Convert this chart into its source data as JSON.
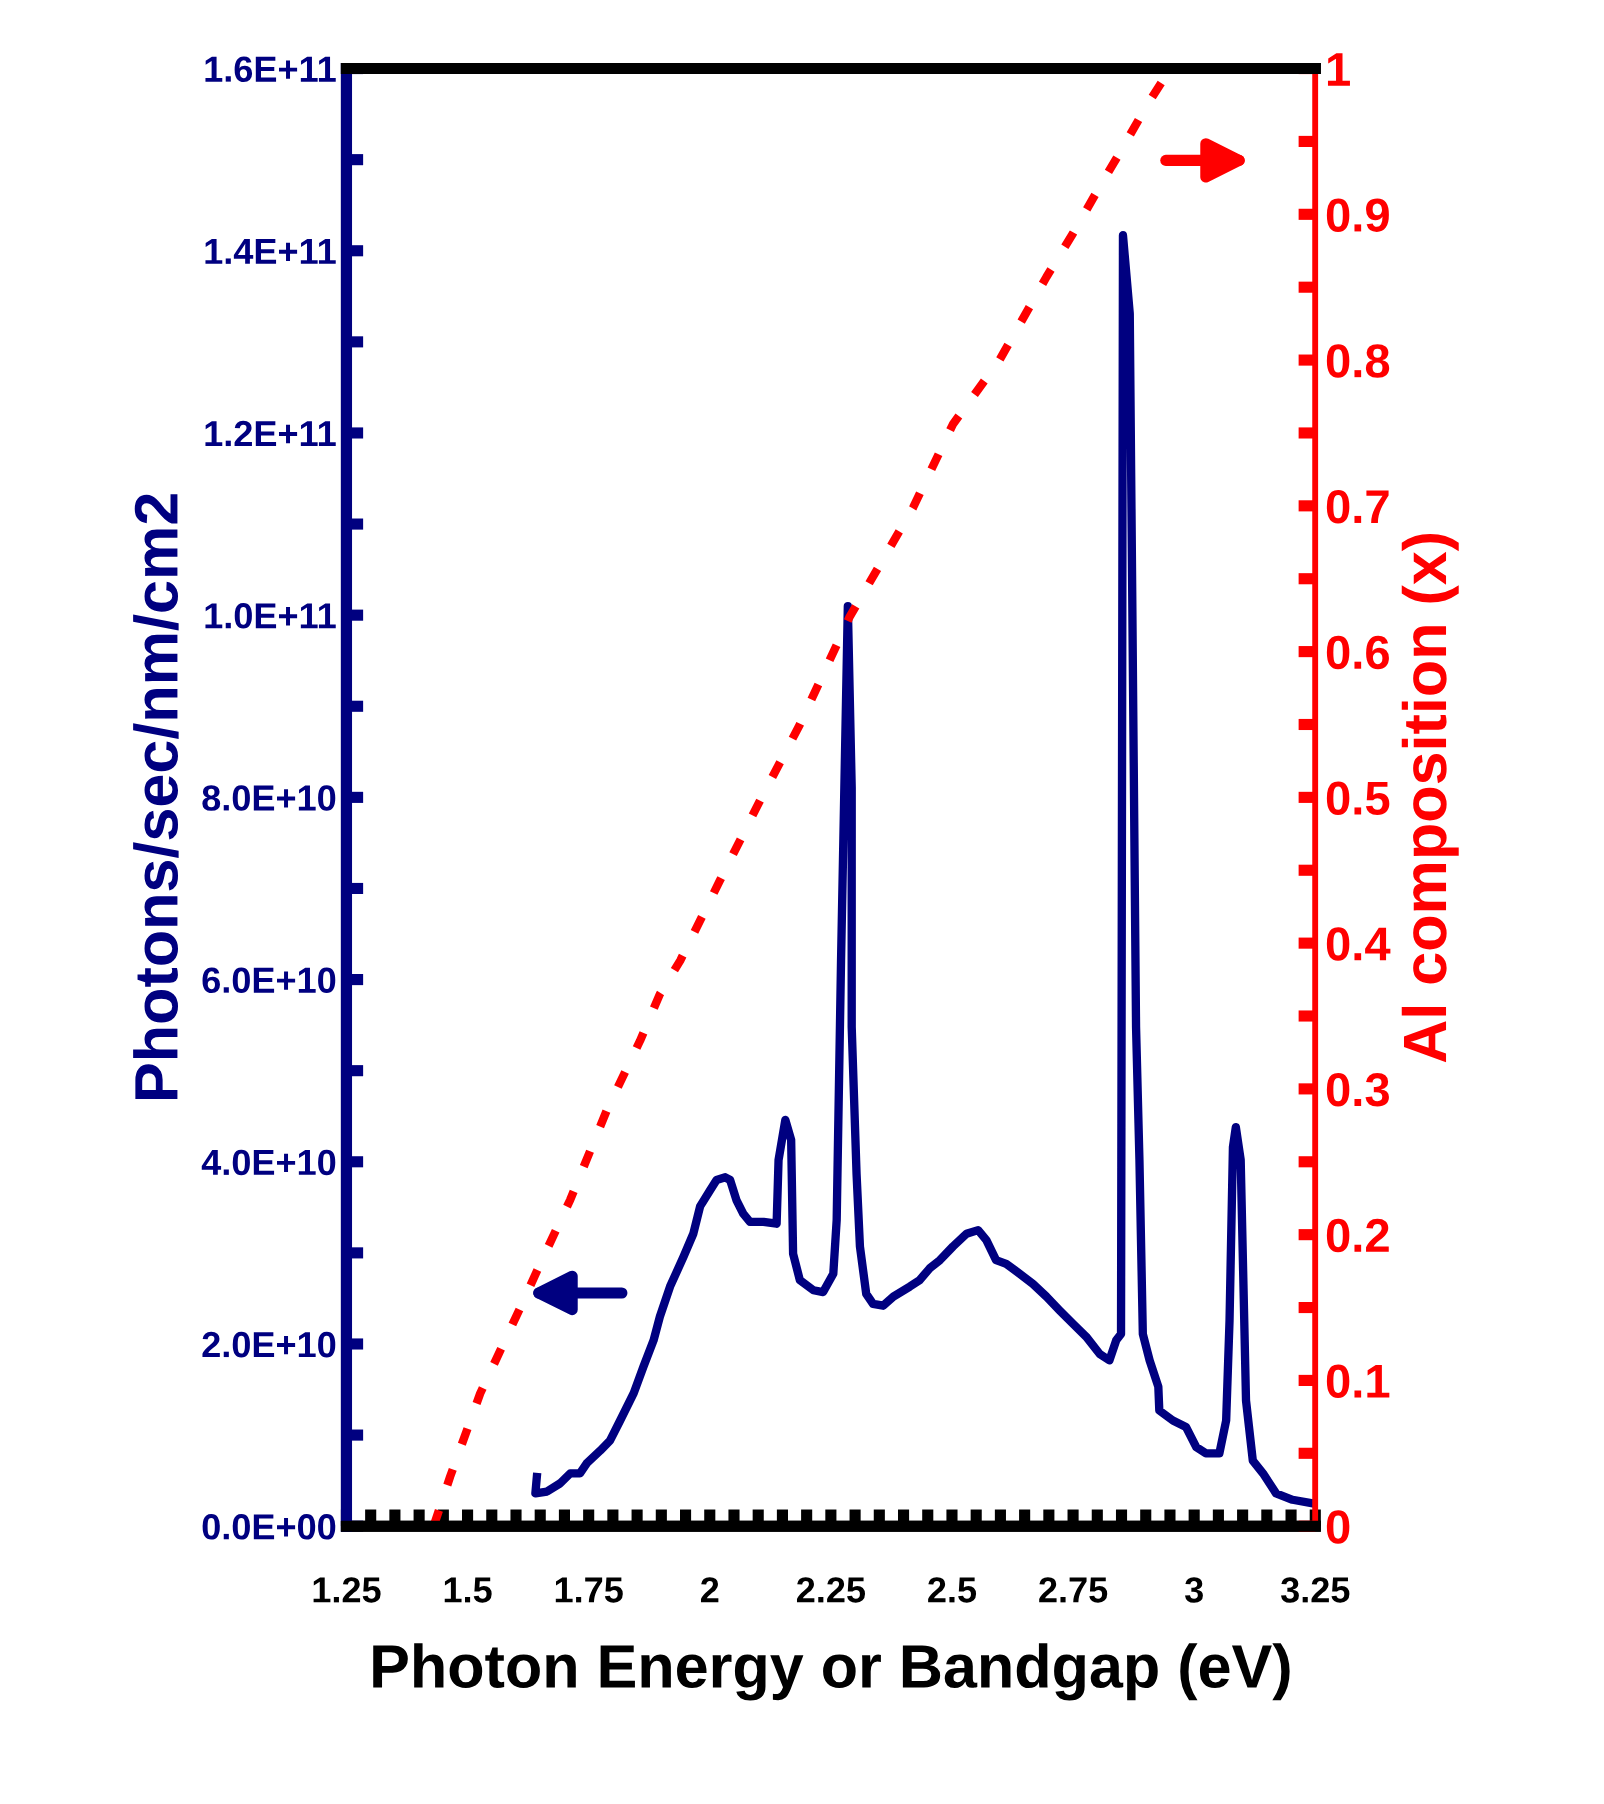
{
  "chart_data": {
    "type": "line",
    "xlabel": "Photon Energy or Bandgap (eV)",
    "ylabel": "Photons/sec/nm/cm2",
    "y2label": "Al composition (x)",
    "xlim": [
      1.25,
      3.25
    ],
    "xticks": [
      1.25,
      {
        "value": 1.3,
        "label": null
      },
      {
        "value": 1.35,
        "label": null
      },
      {
        "value": 1.4,
        "label": null
      },
      {
        "value": 1.45,
        "label": null
      },
      1.5,
      {
        "value": 1.55,
        "label": null
      },
      {
        "value": 1.6,
        "label": null
      },
      {
        "value": 1.65,
        "label": null
      },
      {
        "value": 1.7,
        "label": null
      },
      1.75,
      {
        "value": 1.8,
        "label": null
      },
      {
        "value": 1.85,
        "label": null
      },
      {
        "value": 1.9,
        "label": null
      },
      {
        "value": 1.95,
        "label": null
      },
      2,
      {
        "value": 2.05,
        "label": null
      },
      {
        "value": 2.1,
        "label": null
      },
      {
        "value": 2.15,
        "label": null
      },
      {
        "value": 2.2,
        "label": null
      },
      2.25,
      {
        "value": 2.3,
        "label": null
      },
      {
        "value": 2.35,
        "label": null
      },
      {
        "value": 2.4,
        "label": null
      },
      {
        "value": 2.45,
        "label": null
      },
      2.5,
      {
        "value": 2.55,
        "label": null
      },
      {
        "value": 2.6,
        "label": null
      },
      {
        "value": 2.65,
        "label": null
      },
      {
        "value": 2.7,
        "label": null
      },
      2.75,
      {
        "value": 2.8,
        "label": null
      },
      {
        "value": 2.85,
        "label": null
      },
      {
        "value": 2.9,
        "label": null
      },
      {
        "value": 2.95,
        "label": null
      },
      3,
      {
        "value": 3.05,
        "label": null
      },
      {
        "value": 3.1,
        "label": null
      },
      {
        "value": 3.15,
        "label": null
      },
      {
        "value": 3.2,
        "label": null
      },
      3.25
    ],
    "ylim": [
      0,
      160000000000.0
    ],
    "yticks": [
      {
        "value": 0,
        "label": "0.0E+00"
      },
      {
        "value": 10000000000.0,
        "label": null
      },
      {
        "value": 20000000000.0,
        "label": "2.0E+10"
      },
      {
        "value": 30000000000.0,
        "label": null
      },
      {
        "value": 40000000000.0,
        "label": "4.0E+10"
      },
      {
        "value": 50000000000.0,
        "label": null
      },
      {
        "value": 60000000000.0,
        "label": "6.0E+10"
      },
      {
        "value": 70000000000.0,
        "label": null
      },
      {
        "value": 80000000000.0,
        "label": "8.0E+10"
      },
      {
        "value": 90000000000.0,
        "label": null
      },
      {
        "value": 100000000000.0,
        "label": "1.0E+11"
      },
      {
        "value": 110000000000.0,
        "label": null
      },
      {
        "value": 120000000000.0,
        "label": "1.2E+11"
      },
      {
        "value": 130000000000.0,
        "label": null
      },
      {
        "value": 140000000000.0,
        "label": "1.4E+11"
      },
      {
        "value": 150000000000.0,
        "label": null
      },
      {
        "value": 160000000000.0,
        "label": "1.6E+11"
      }
    ],
    "y2lim": [
      0,
      1
    ],
    "y2ticks": [
      0,
      {
        "value": 0.05,
        "label": null
      },
      0.1,
      {
        "value": 0.15,
        "label": null
      },
      0.2,
      {
        "value": 0.25,
        "label": null
      },
      0.3,
      {
        "value": 0.35,
        "label": null
      },
      0.4,
      {
        "value": 0.45,
        "label": null
      },
      0.5,
      {
        "value": 0.55,
        "label": null
      },
      0.6,
      {
        "value": 0.65,
        "label": null
      },
      0.7,
      {
        "value": 0.75,
        "label": null
      },
      0.8,
      {
        "value": 0.85,
        "label": null
      },
      0.9,
      {
        "value": 0.95,
        "label": null
      },
      1
    ],
    "grid": false,
    "legend": false,
    "marker": "none",
    "series": [
      {
        "color": "#000080",
        "line_style": "solid",
        "x": [
          1.643,
          1.64,
          1.664,
          1.691,
          1.712,
          1.732,
          1.746,
          1.774,
          1.794,
          1.815,
          1.843,
          1.863,
          1.884,
          1.897,
          1.918,
          1.946,
          1.966,
          1.98,
          2.001,
          2.014,
          2.032,
          2.042,
          2.055,
          2.069,
          2.083,
          2.111,
          2.138,
          2.142,
          2.156,
          2.168,
          2.172,
          2.186,
          2.214,
          2.234,
          2.255,
          2.262,
          2.271,
          2.285,
          2.293,
          2.293,
          2.303,
          2.31,
          2.323,
          2.337,
          2.358,
          2.379,
          2.413,
          2.433,
          2.454,
          2.475,
          2.502,
          2.53,
          2.554,
          2.571,
          2.591,
          2.612,
          2.64,
          2.667,
          2.695,
          2.722,
          2.75,
          2.777,
          2.805,
          2.825,
          2.839,
          2.849,
          2.853,
          2.867,
          2.88,
          2.887,
          2.894,
          2.908,
          2.926,
          2.928,
          2.956,
          2.983,
          3.004,
          3.024,
          3.052,
          3.066,
          3.073,
          3.08,
          3.086,
          3.096,
          3.107,
          3.121,
          3.142,
          3.169,
          3.203,
          3.245
        ],
        "values": [
          5400000000.0,
          3600000000.0,
          3800000000.0,
          4700000000.0,
          5800000000.0,
          5800000000.0,
          6900000000.0,
          8300000000.0,
          9400000000.0,
          11600000000.0,
          14600000000.0,
          17500000000.0,
          20400000000.0,
          23000000000.0,
          26300000000.0,
          29600000000.0,
          32100000000.0,
          35100000000.0,
          36900000000.0,
          38000000000.0,
          38300000000.0,
          38000000000.0,
          35800000000.0,
          34300000000.0,
          33400000000.0,
          33400000000.0,
          33200000000.0,
          40200000000.0,
          44600000000.0,
          42400000000.0,
          29900000000.0,
          27000000000.0,
          25900000000.0,
          25700000000.0,
          27700000000.0,
          33600000000.0,
          62100000000.0,
          101000000000.0,
          81100000000.0,
          54800000000.0,
          38700000000.0,
          30700000000.0,
          25500000000.0,
          24400000000.0,
          24200000000.0,
          25200000000.0,
          26300000000.0,
          27000000000.0,
          28300000000.0,
          29200000000.0,
          30700000000.0,
          32100000000.0,
          32500000000.0,
          31400000000.0,
          29200000000.0,
          28800000000.0,
          27700000000.0,
          26600000000.0,
          25200000000.0,
          23700000000.0,
          22200000000.0,
          20800000000.0,
          18900000000.0,
          18200000000.0,
          20400000000.0,
          21100000000.0,
          141700000000.0,
          133100000000.0,
          54800000000.0,
          40200000000.0,
          21100000000.0,
          18200000000.0,
          15300000000.0,
          12700000000.0,
          11600000000.0,
          10900000000.0,
          8700000000.0,
          8000000000.0,
          8000000000.0,
          11600000000.0,
          22600000000.0,
          41600000000.0,
          43800000000.0,
          40200000000.0,
          13800000000.0,
          7200000000.0,
          5800000000.0,
          3600000000.0,
          2900000000.0,
          2500000000.0
        ]
      },
      {
        "color": "#ff0000",
        "line_style": "dotted",
        "axis": "y2",
        "x": [
          1.43,
          1.464,
          1.526,
          1.609,
          1.65,
          1.712,
          1.787,
          1.856,
          1.897,
          1.939,
          2.021,
          2.104,
          2.186,
          2.289,
          2.42,
          2.502,
          2.598,
          2.695,
          2.75,
          2.805,
          2.853,
          2.901,
          2.949
        ],
        "values": [
          0,
          0.034,
          0.091,
          0.15,
          0.18,
          0.224,
          0.285,
          0.333,
          0.365,
          0.388,
          0.443,
          0.498,
          0.55,
          0.624,
          0.699,
          0.756,
          0.8,
          0.857,
          0.887,
          0.919,
          0.946,
          0.974,
          0.999
        ]
      }
    ]
  }
}
